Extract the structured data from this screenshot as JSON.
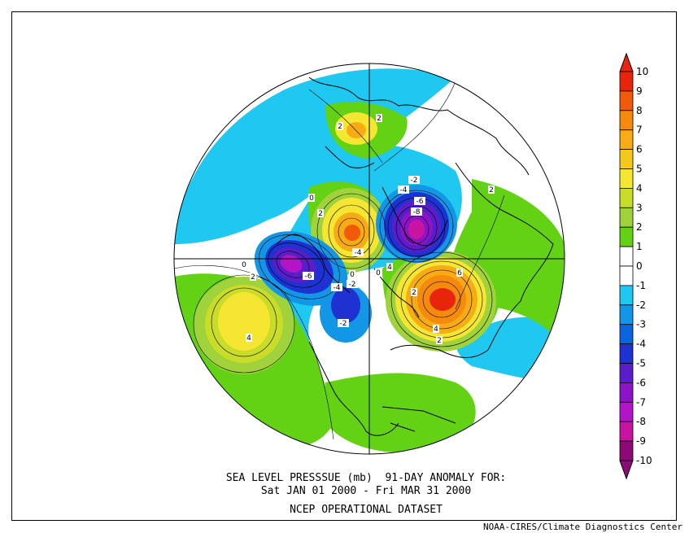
{
  "caption": {
    "line1": "SEA LEVEL PRESSSUE (mb)  91-DAY ANOMALY FOR:",
    "line2": "Sat JAN 01 2000 - Fri MAR 31 2000",
    "line3": "NCEP OPERATIONAL DATASET"
  },
  "credit": "NOAA-CIRES/Climate Diagnostics Center",
  "colorbar": {
    "labels": [
      "10",
      "9",
      "8",
      "7",
      "6",
      "5",
      "4",
      "3",
      "2",
      "1",
      "0",
      "-1",
      "-2",
      "-3",
      "-4",
      "-5",
      "-6",
      "-7",
      "-8",
      "-9",
      "-10"
    ],
    "colors": {
      "pos_9_10": "#e8240c",
      "pos_8_9": "#f05a0a",
      "pos_7_8": "#f58a0c",
      "pos_6_7": "#f7ab15",
      "pos_5_6": "#f5c81c",
      "pos_4_5": "#f5e632",
      "pos_3_4": "#c8dc28",
      "pos_2_3": "#a0d23c",
      "pos_1_2": "#64d214",
      "neutral": "#ffffff",
      "neg_1_2": "#1ec8f0",
      "neg_2_3": "#1496e6",
      "neg_3_4": "#0a64dc",
      "neg_4_5": "#1e32d2",
      "neg_5_6": "#5a1ec8",
      "neg_6_7": "#8c14c8",
      "neg_7_8": "#b414c8",
      "neg_8_9": "#c814a0",
      "neg_9_10": "#8c0a78"
    }
  },
  "contour_labels": [
    "2",
    "2",
    "-2",
    "-4",
    "-6",
    "-8",
    "2",
    "2",
    "-4",
    "4",
    "0",
    "-6",
    "-4",
    "-2",
    "0",
    "2",
    "0",
    "6",
    "4",
    "2",
    "4",
    "-2",
    "2",
    "0"
  ]
}
